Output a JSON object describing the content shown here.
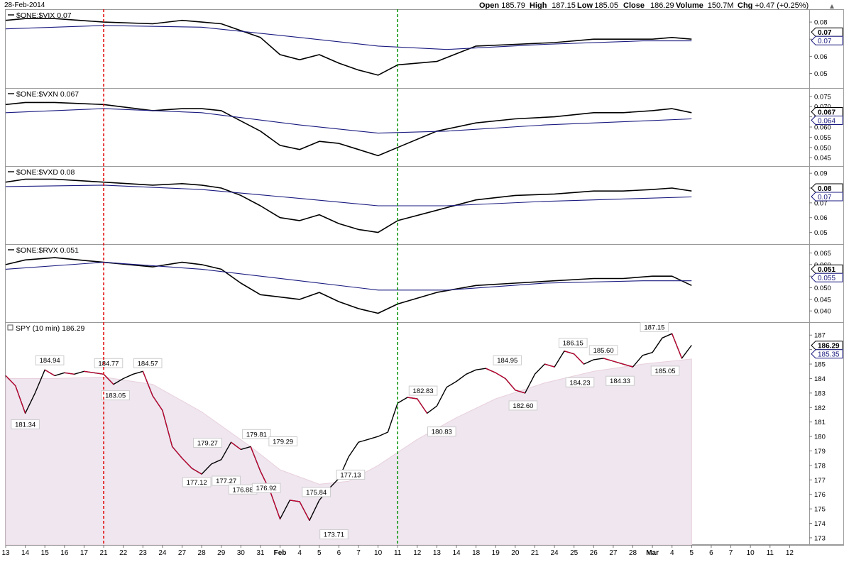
{
  "header": {
    "date": "28-Feb-2014",
    "open_label": "Open",
    "open": "185.79",
    "high_label": "High",
    "high": "187.15",
    "low_label": "Low",
    "low": "185.05",
    "close_label": "Close",
    "close": "186.29",
    "volume_label": "Volume",
    "volume": "150.7M",
    "chg_label": "Chg",
    "chg": "+0.47 (+0.25%)"
  },
  "colors": {
    "price_line": "#000000",
    "moving_average": "#1a1a80",
    "red_marker": "#e00000",
    "green_marker": "#009000",
    "area_fill": "#efe6ef",
    "grid": "#cccccc",
    "down_candle": "#cc0033"
  },
  "chart_data": [
    {
      "type": "line",
      "title": "$ONE:$VIX 0.07",
      "ylim": [
        0.044,
        0.085
      ],
      "y_ticks": [
        "0.08",
        "0.07",
        "0.06",
        "0.05"
      ],
      "last_value": "0.07",
      "ma_value": "0.07",
      "series": [
        {
          "x": [
            0,
            2,
            5,
            10,
            15,
            18,
            20,
            22,
            24,
            26,
            28,
            30,
            32,
            34,
            36,
            38,
            40,
            44,
            48,
            52,
            56,
            60,
            63,
            66,
            68,
            70
          ],
          "values": [
            0.081,
            0.082,
            0.082,
            0.08,
            0.079,
            0.081,
            0.08,
            0.079,
            0.075,
            0.071,
            0.061,
            0.058,
            0.061,
            0.056,
            0.052,
            0.049,
            0.055,
            0.057,
            0.066,
            0.067,
            0.068,
            0.07,
            0.07,
            0.07,
            0.071,
            0.07
          ]
        },
        {
          "x": [
            0,
            10,
            20,
            30,
            38,
            45,
            55,
            65,
            70
          ],
          "values": [
            0.076,
            0.078,
            0.077,
            0.071,
            0.066,
            0.064,
            0.067,
            0.069,
            0.069
          ]
        }
      ]
    },
    {
      "type": "line",
      "title": "$ONE:$VXN 0.067",
      "ylim": [
        0.043,
        0.077
      ],
      "y_ticks": [
        "0.075",
        "0.070",
        "0.065",
        "0.060",
        "0.055",
        "0.050",
        "0.045"
      ],
      "last_value": "0.067",
      "ma_value": "0.064",
      "series": [
        {
          "x": [
            0,
            2,
            5,
            10,
            15,
            18,
            20,
            22,
            24,
            26,
            28,
            30,
            32,
            34,
            36,
            38,
            40,
            44,
            48,
            52,
            56,
            60,
            63,
            66,
            68,
            70
          ],
          "values": [
            0.071,
            0.072,
            0.072,
            0.071,
            0.068,
            0.069,
            0.069,
            0.068,
            0.063,
            0.058,
            0.051,
            0.049,
            0.053,
            0.052,
            0.049,
            0.046,
            0.05,
            0.058,
            0.062,
            0.064,
            0.065,
            0.067,
            0.067,
            0.068,
            0.069,
            0.067
          ]
        },
        {
          "x": [
            0,
            10,
            20,
            30,
            38,
            45,
            55,
            65,
            70
          ],
          "values": [
            0.067,
            0.069,
            0.067,
            0.061,
            0.057,
            0.058,
            0.061,
            0.063,
            0.064
          ]
        }
      ]
    },
    {
      "type": "line",
      "title": "$ONE:$VXD 0.08",
      "ylim": [
        0.045,
        0.092
      ],
      "y_ticks": [
        "0.09",
        "0.08",
        "0.07",
        "0.06",
        "0.05"
      ],
      "last_value": "0.08",
      "ma_value": "0.07",
      "series": [
        {
          "x": [
            0,
            2,
            5,
            10,
            15,
            18,
            20,
            22,
            24,
            26,
            28,
            30,
            32,
            34,
            36,
            38,
            40,
            44,
            48,
            52,
            56,
            60,
            63,
            66,
            68,
            70
          ],
          "values": [
            0.084,
            0.086,
            0.086,
            0.084,
            0.082,
            0.083,
            0.082,
            0.08,
            0.075,
            0.068,
            0.06,
            0.058,
            0.062,
            0.056,
            0.052,
            0.05,
            0.058,
            0.065,
            0.072,
            0.075,
            0.076,
            0.078,
            0.078,
            0.079,
            0.08,
            0.078
          ]
        },
        {
          "x": [
            0,
            10,
            20,
            30,
            38,
            45,
            55,
            65,
            70
          ],
          "values": [
            0.081,
            0.082,
            0.079,
            0.073,
            0.068,
            0.068,
            0.071,
            0.073,
            0.074
          ]
        }
      ]
    },
    {
      "type": "line",
      "title": "$ONE:$RVX 0.051",
      "ylim": [
        0.037,
        0.067
      ],
      "y_ticks": [
        "0.065",
        "0.060",
        "0.055",
        "0.050",
        "0.045",
        "0.040"
      ],
      "last_value": "0.051",
      "ma_value": "0.055",
      "series": [
        {
          "x": [
            0,
            2,
            5,
            10,
            15,
            18,
            20,
            22,
            24,
            26,
            28,
            30,
            32,
            34,
            36,
            38,
            40,
            44,
            48,
            52,
            56,
            60,
            63,
            66,
            68,
            70
          ],
          "values": [
            0.06,
            0.062,
            0.063,
            0.061,
            0.059,
            0.061,
            0.06,
            0.058,
            0.052,
            0.047,
            0.046,
            0.045,
            0.048,
            0.044,
            0.041,
            0.039,
            0.043,
            0.048,
            0.051,
            0.052,
            0.053,
            0.054,
            0.054,
            0.055,
            0.055,
            0.051
          ]
        },
        {
          "x": [
            0,
            10,
            20,
            30,
            38,
            45,
            55,
            65,
            70
          ],
          "values": [
            0.058,
            0.061,
            0.058,
            0.053,
            0.049,
            0.049,
            0.052,
            0.053,
            0.053
          ]
        }
      ]
    },
    {
      "type": "line",
      "title": "SPY (10 min) 186.29",
      "ylim": [
        172.8,
        187.6
      ],
      "y_ticks": [
        "187",
        "186",
        "185",
        "184",
        "183",
        "182",
        "181",
        "180",
        "179",
        "178",
        "177",
        "176",
        "175",
        "174",
        "173"
      ],
      "last_value": "186.29",
      "ma_value": "185.35",
      "series": [
        {
          "name": "",
          "x": [
            0,
            1,
            2,
            3,
            4,
            5,
            6,
            7,
            8,
            9,
            10,
            11,
            12,
            13,
            14,
            15,
            16,
            17,
            18,
            19,
            20,
            21,
            22,
            23,
            24,
            25,
            26,
            27,
            28,
            29,
            30,
            31,
            32,
            33,
            34,
            35,
            36,
            37,
            38,
            39,
            40,
            41,
            42,
            43,
            44,
            45,
            46,
            47,
            48,
            49,
            50,
            51,
            52,
            53,
            54,
            55,
            56,
            57,
            58,
            59,
            60,
            61,
            62,
            63,
            64,
            65,
            66,
            67,
            68,
            69,
            70
          ],
          "values": [
            184.2,
            183.5,
            181.6,
            183.0,
            184.6,
            184.2,
            184.4,
            184.3,
            184.5,
            184.4,
            184.3,
            183.6,
            184.0,
            184.3,
            184.5,
            182.8,
            181.8,
            179.3,
            178.5,
            177.8,
            177.4,
            178.1,
            178.4,
            179.6,
            179.1,
            179.3,
            177.6,
            176.2,
            174.3,
            175.6,
            175.5,
            174.2,
            175.6,
            176.4,
            177.1,
            178.6,
            179.6,
            179.8,
            180.0,
            180.3,
            182.3,
            182.7,
            182.6,
            181.6,
            182.1,
            183.4,
            183.8,
            184.3,
            184.6,
            184.7,
            184.4,
            184.0,
            183.2,
            183.0,
            184.3,
            185.0,
            184.8,
            185.9,
            185.7,
            185.0,
            185.3,
            185.4,
            185.2,
            185.0,
            184.8,
            185.6,
            185.8,
            186.8,
            187.1,
            185.4,
            186.3
          ]
        },
        {
          "name": "",
          "x": [
            0,
            5,
            10,
            15,
            20,
            25,
            28,
            32,
            35,
            38,
            42,
            46,
            50,
            55,
            60,
            65,
            70
          ],
          "values": [
            184.0,
            184.0,
            184.1,
            183.6,
            181.7,
            179.3,
            177.7,
            176.7,
            176.9,
            178.0,
            179.8,
            181.3,
            182.6,
            183.7,
            184.5,
            185.0,
            185.35
          ]
        }
      ],
      "annotations": [
        {
          "x": 2,
          "y": 181.6,
          "label": "181.34",
          "pos": "below"
        },
        {
          "x": 4.5,
          "y": 184.6,
          "label": "184.94",
          "pos": "above"
        },
        {
          "x": 10.5,
          "y": 184.4,
          "label": "184.77",
          "pos": "above"
        },
        {
          "x": 11.2,
          "y": 183.6,
          "label": "183.05",
          "pos": "below"
        },
        {
          "x": 14.5,
          "y": 184.4,
          "label": "184.57",
          "pos": "above"
        },
        {
          "x": 19.5,
          "y": 177.6,
          "label": "177.12",
          "pos": "below"
        },
        {
          "x": 20.6,
          "y": 178.9,
          "label": "179.27",
          "pos": "above"
        },
        {
          "x": 22.5,
          "y": 177.7,
          "label": "177.27",
          "pos": "below"
        },
        {
          "x": 24.2,
          "y": 177.1,
          "label": "176.88",
          "pos": "below"
        },
        {
          "x": 25.6,
          "y": 179.5,
          "label": "179.81",
          "pos": "above"
        },
        {
          "x": 26.6,
          "y": 177.2,
          "label": "176.92",
          "pos": "below"
        },
        {
          "x": 28.3,
          "y": 179.0,
          "label": "179.29",
          "pos": "above"
        },
        {
          "x": 31.7,
          "y": 175.5,
          "label": "175.84",
          "pos": "above"
        },
        {
          "x": 33.5,
          "y": 174.0,
          "label": "173.71",
          "pos": "below"
        },
        {
          "x": 35.2,
          "y": 176.7,
          "label": "177.13",
          "pos": "above"
        },
        {
          "x": 42.6,
          "y": 182.5,
          "label": "182.83",
          "pos": "above"
        },
        {
          "x": 44.5,
          "y": 181.1,
          "label": "180.83",
          "pos": "below"
        },
        {
          "x": 51.2,
          "y": 184.6,
          "label": "184.95",
          "pos": "above"
        },
        {
          "x": 52.8,
          "y": 182.9,
          "label": "182.60",
          "pos": "below"
        },
        {
          "x": 57.9,
          "y": 185.8,
          "label": "186.15",
          "pos": "above"
        },
        {
          "x": 58.6,
          "y": 184.5,
          "label": "184.23",
          "pos": "below"
        },
        {
          "x": 61.0,
          "y": 185.3,
          "label": "185.60",
          "pos": "above"
        },
        {
          "x": 62.7,
          "y": 184.6,
          "label": "184.33",
          "pos": "below"
        },
        {
          "x": 66.2,
          "y": 186.9,
          "label": "187.15",
          "pos": "above"
        },
        {
          "x": 67.3,
          "y": 185.3,
          "label": "185.05",
          "pos": "below"
        }
      ]
    }
  ],
  "x_axis": {
    "range": [
      0,
      82
    ],
    "labels": [
      {
        "x": 0,
        "label": "13"
      },
      {
        "x": 2,
        "label": "14"
      },
      {
        "x": 4,
        "label": "15"
      },
      {
        "x": 6,
        "label": "16"
      },
      {
        "x": 8,
        "label": "17"
      },
      {
        "x": 10,
        "label": "21"
      },
      {
        "x": 12,
        "label": "22"
      },
      {
        "x": 14,
        "label": "23"
      },
      {
        "x": 16,
        "label": "24"
      },
      {
        "x": 18,
        "label": "27"
      },
      {
        "x": 20,
        "label": "28"
      },
      {
        "x": 22,
        "label": "29"
      },
      {
        "x": 24,
        "label": "30"
      },
      {
        "x": 26,
        "label": "31"
      },
      {
        "x": 28,
        "label": "Feb"
      },
      {
        "x": 30,
        "label": "4"
      },
      {
        "x": 32,
        "label": "5"
      },
      {
        "x": 34,
        "label": "6"
      },
      {
        "x": 36,
        "label": "7"
      },
      {
        "x": 38,
        "label": "10"
      },
      {
        "x": 40,
        "label": "11"
      },
      {
        "x": 42,
        "label": "12"
      },
      {
        "x": 44,
        "label": "13"
      },
      {
        "x": 46,
        "label": "14"
      },
      {
        "x": 48,
        "label": "18"
      },
      {
        "x": 50,
        "label": "19"
      },
      {
        "x": 52,
        "label": "20"
      },
      {
        "x": 54,
        "label": "21"
      },
      {
        "x": 56,
        "label": "24"
      },
      {
        "x": 58,
        "label": "25"
      },
      {
        "x": 60,
        "label": "26"
      },
      {
        "x": 62,
        "label": "27"
      },
      {
        "x": 64,
        "label": "28"
      },
      {
        "x": 66,
        "label": "Mar"
      },
      {
        "x": 68,
        "label": "4"
      },
      {
        "x": 70,
        "label": "5"
      },
      {
        "x": 72,
        "label": "6"
      },
      {
        "x": 74,
        "label": "7"
      },
      {
        "x": 76,
        "label": "10"
      },
      {
        "x": 78,
        "label": "11"
      },
      {
        "x": 80,
        "label": "12"
      }
    ],
    "bold_labels": [
      "Feb",
      "Mar"
    ]
  },
  "markers": [
    {
      "x": 10,
      "color": "red",
      "style": "dashed"
    },
    {
      "x": 40,
      "color": "green",
      "style": "dashed"
    }
  ]
}
